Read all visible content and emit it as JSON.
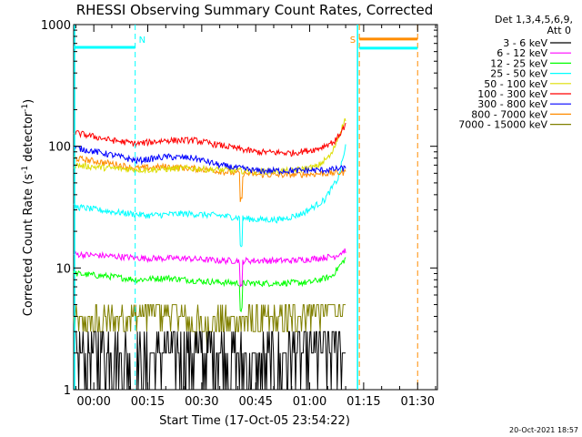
{
  "chart_data": {
    "type": "line",
    "title": "RHESSI Observing Summary Count Rates, Corrected",
    "ylabel": "Corrected Count Rate (s",
    "ylabel_sup": "-1",
    "ylabel_tail": " detector",
    "ylabel_sup2": "-1",
    "ylabel_close": ")",
    "xlabel": "Start Time (17-Oct-05 23:54:22)",
    "yscale": "log",
    "ylim": [
      1,
      1000
    ],
    "xlim_minutes": [
      -5.6,
      95.5
    ],
    "y_ticks": [
      {
        "value": 1,
        "label": "1"
      },
      {
        "value": 10,
        "label": "10"
      },
      {
        "value": 100,
        "label": "100"
      },
      {
        "value": 1000,
        "label": "1000"
      }
    ],
    "x_ticks": [
      {
        "minute": 0,
        "label": "00:00"
      },
      {
        "minute": 15,
        "label": "00:15"
      },
      {
        "minute": 30,
        "label": "00:30"
      },
      {
        "minute": 45,
        "label": "00:45"
      },
      {
        "minute": 60,
        "label": "01:00"
      },
      {
        "minute": 75,
        "label": "01:15"
      },
      {
        "minute": 90,
        "label": "01:30"
      }
    ],
    "legend": {
      "header_line1": "Det 1,3,4,5,6,9,",
      "header_line2": "Att 0",
      "entries": [
        {
          "label": "3 - 6 keV",
          "color": "#000000"
        },
        {
          "label": "6 - 12 keV",
          "color": "#ff00ff"
        },
        {
          "label": "12 - 25 keV",
          "color": "#00ff00"
        },
        {
          "label": "25 - 50 keV",
          "color": "#00ffff"
        },
        {
          "label": "50 - 100 keV",
          "color": "#dddd00"
        },
        {
          "label": "100 - 300 keV",
          "color": "#ff0000"
        },
        {
          "label": "300 - 800 keV",
          "color": "#0000ff"
        },
        {
          "label": "800 - 7000 keV",
          "color": "#ff8c00"
        },
        {
          "label": "7000 - 15000 keV",
          "color": "#808000"
        }
      ]
    },
    "region_markers": [
      {
        "label": "N",
        "minute": 11.5,
        "color": "#00ffff",
        "style": "dashed"
      },
      {
        "label": "S",
        "minute": 73.8,
        "color": "#ff8c00",
        "style": "dashed"
      }
    ],
    "night_lines": [
      {
        "minute_start": -5.6,
        "minute_end": 11.5,
        "value": 650,
        "color": "#00ffff"
      },
      {
        "minute_start": 73.8,
        "minute_end": 90,
        "value": 640,
        "color": "#00ffff"
      },
      {
        "minute_start": 73.8,
        "minute_end": 90,
        "value": 760,
        "color": "#ff8c00"
      }
    ],
    "data_span_minutes": [
      -5.6,
      70
    ],
    "series": [
      {
        "name": "3 - 6 keV",
        "color": "#000000",
        "kind": "quantized",
        "knots": [
          [
            -5.6,
            2.0
          ],
          [
            5,
            2.2
          ],
          [
            12,
            1.6
          ],
          [
            20,
            2.0
          ],
          [
            35,
            2.0
          ],
          [
            45,
            1.5
          ],
          [
            55,
            2.0
          ],
          [
            65,
            2.2
          ],
          [
            70,
            2.4
          ]
        ]
      },
      {
        "name": "6 - 12 keV",
        "color": "#ff00ff",
        "knots": [
          [
            -5.6,
            13
          ],
          [
            5,
            12.5
          ],
          [
            15,
            12
          ],
          [
            25,
            12
          ],
          [
            35,
            11.5
          ],
          [
            45,
            11.5
          ],
          [
            55,
            11.5
          ],
          [
            62,
            12
          ],
          [
            67,
            12.5
          ],
          [
            70,
            14
          ]
        ]
      },
      {
        "name": "12 - 25 keV",
        "color": "#00ff00",
        "knots": [
          [
            -5.6,
            9
          ],
          [
            5,
            8.5
          ],
          [
            12,
            8
          ],
          [
            20,
            8.3
          ],
          [
            30,
            7.8
          ],
          [
            40,
            7.5
          ],
          [
            50,
            7.5
          ],
          [
            60,
            7.6
          ],
          [
            66,
            8.5
          ],
          [
            70,
            12
          ]
        ]
      },
      {
        "name": "25 - 50 keV",
        "color": "#00ffff",
        "knots": [
          [
            -5.6,
            32
          ],
          [
            5,
            29
          ],
          [
            15,
            27
          ],
          [
            25,
            28
          ],
          [
            35,
            27
          ],
          [
            45,
            25
          ],
          [
            52,
            25
          ],
          [
            58,
            28
          ],
          [
            64,
            36
          ],
          [
            68,
            55
          ],
          [
            70,
            100
          ]
        ]
      },
      {
        "name": "50 - 100 keV",
        "color": "#dddd00",
        "knots": [
          [
            -5.6,
            70
          ],
          [
            5,
            66
          ],
          [
            15,
            64
          ],
          [
            25,
            66
          ],
          [
            35,
            64
          ],
          [
            45,
            62
          ],
          [
            55,
            63
          ],
          [
            62,
            68
          ],
          [
            66,
            85
          ],
          [
            70,
            170
          ]
        ]
      },
      {
        "name": "100 - 300 keV",
        "color": "#ff0000",
        "knots": [
          [
            -5.6,
            130
          ],
          [
            5,
            112
          ],
          [
            12,
            105
          ],
          [
            20,
            112
          ],
          [
            28,
            112
          ],
          [
            35,
            102
          ],
          [
            45,
            90
          ],
          [
            55,
            88
          ],
          [
            62,
            95
          ],
          [
            67,
            110
          ],
          [
            70,
            150
          ]
        ]
      },
      {
        "name": "300 - 800 keV",
        "color": "#0000ff",
        "knots": [
          [
            -5.6,
            98
          ],
          [
            5,
            85
          ],
          [
            12,
            76
          ],
          [
            20,
            82
          ],
          [
            28,
            80
          ],
          [
            35,
            70
          ],
          [
            45,
            63
          ],
          [
            55,
            63
          ],
          [
            65,
            64
          ],
          [
            70,
            66
          ]
        ]
      },
      {
        "name": "800 - 7000 keV",
        "color": "#ff8c00",
        "knots": [
          [
            -5.6,
            80
          ],
          [
            5,
            72
          ],
          [
            12,
            66
          ],
          [
            20,
            68
          ],
          [
            30,
            65
          ],
          [
            40,
            60
          ],
          [
            50,
            58
          ],
          [
            60,
            59
          ],
          [
            70,
            61
          ]
        ]
      },
      {
        "name": "7000 - 15000 keV",
        "color": "#808000",
        "kind": "quantized",
        "knots": [
          [
            -5.6,
            3.5
          ],
          [
            5,
            3.7
          ],
          [
            12,
            4.2
          ],
          [
            22,
            4.6
          ],
          [
            28,
            3.4
          ],
          [
            40,
            3.8
          ],
          [
            50,
            3.6
          ],
          [
            60,
            4.4
          ],
          [
            70,
            4.8
          ]
        ]
      }
    ]
  },
  "footer": {
    "timestamp": "20-Oct-2021 18:57"
  }
}
